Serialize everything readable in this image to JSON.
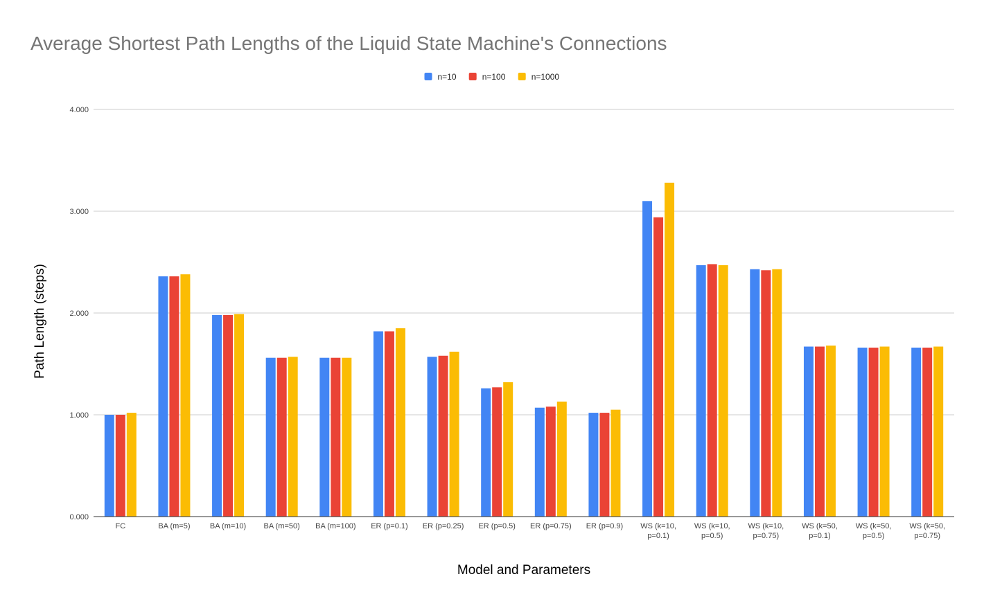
{
  "chart_data": {
    "type": "bar",
    "title": "Average Shortest Path Lengths of the Liquid State Machine's Connections",
    "xlabel": "Model and Parameters",
    "ylabel": "Path Length (steps)",
    "ylim": [
      0,
      4
    ],
    "yticks": [
      "0.000",
      "1.000",
      "2.000",
      "3.000",
      "4.000"
    ],
    "grid": true,
    "legend_position": "top-center",
    "categories": [
      "FC",
      "BA (m=5)",
      "BA (m=10)",
      "BA (m=50)",
      "BA (m=100)",
      "ER (p=0.1)",
      "ER (p=0.25)",
      "ER (p=0.5)",
      "ER (p=0.75)",
      "ER (p=0.9)",
      "WS (k=10, p=0.1)",
      "WS (k=10, p=0.5)",
      "WS (k=10, p=0.75)",
      "WS (k=50, p=0.1)",
      "WS (k=50, p=0.5)",
      "WS (k=50, p=0.75)"
    ],
    "series": [
      {
        "name": "n=10",
        "color": "#4285F4",
        "values": [
          1.0,
          2.36,
          1.98,
          1.56,
          1.56,
          1.82,
          1.57,
          1.26,
          1.07,
          1.02,
          3.1,
          2.47,
          2.43,
          1.67,
          1.66,
          1.66
        ]
      },
      {
        "name": "n=100",
        "color": "#EA4335",
        "values": [
          1.0,
          2.36,
          1.98,
          1.56,
          1.56,
          1.82,
          1.58,
          1.27,
          1.08,
          1.02,
          2.94,
          2.48,
          2.42,
          1.67,
          1.66,
          1.66
        ]
      },
      {
        "name": "n=1000",
        "color": "#FBBC04",
        "values": [
          1.02,
          2.38,
          1.99,
          1.57,
          1.56,
          1.85,
          1.62,
          1.32,
          1.13,
          1.05,
          3.28,
          2.47,
          2.43,
          1.68,
          1.67,
          1.67
        ]
      }
    ]
  }
}
